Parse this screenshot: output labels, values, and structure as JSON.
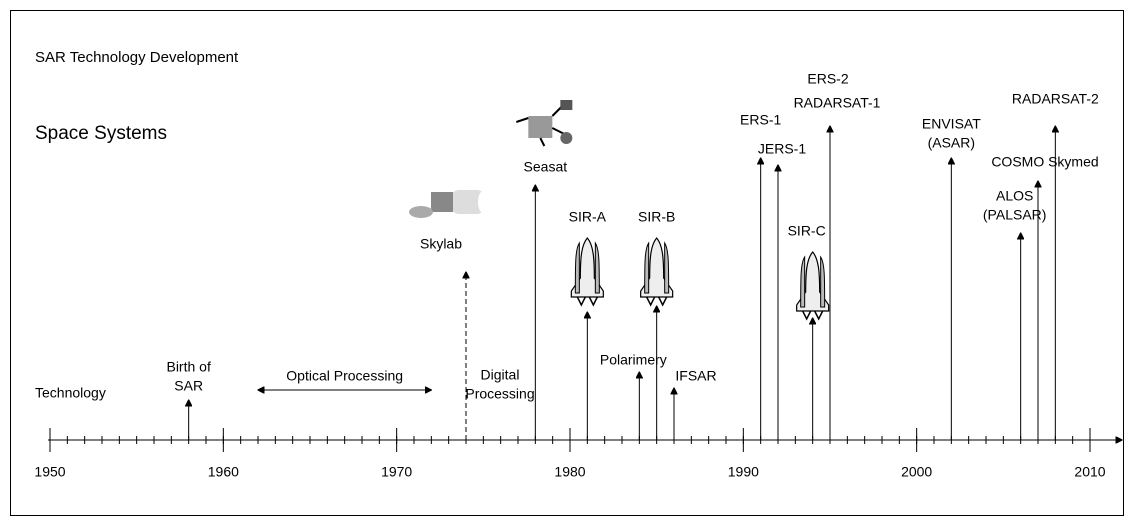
{
  "title": "SAR Technology Development",
  "section_space": "Space Systems",
  "section_technology": "Technology",
  "timeline": {
    "xlim": [
      1950,
      2010
    ],
    "xticks": [
      1950,
      1960,
      1970,
      1980,
      1990,
      2000,
      2010
    ]
  },
  "span": {
    "label": "Optical Processing",
    "years": [
      1962,
      1972
    ]
  },
  "note": [
    "Digital",
    "Processing"
  ],
  "events": [
    {
      "lines": [
        "Birth of",
        "SAR"
      ],
      "year": 1958
    },
    {
      "lines": [
        "Skylab"
      ],
      "year": 1974
    },
    {
      "lines": [
        "Seasat"
      ],
      "year": 1978
    },
    {
      "lines": [
        "SIR-A"
      ],
      "year": 1981
    },
    {
      "lines": [
        "Polarimery"
      ],
      "year": 1984
    },
    {
      "lines": [
        "SIR-B"
      ],
      "year": 1985
    },
    {
      "lines": [
        "IFSAR"
      ],
      "year": 1986
    },
    {
      "lines": [
        "ERS-1"
      ],
      "year": 1991
    },
    {
      "lines": [
        "JERS-1"
      ],
      "year": 1992
    },
    {
      "lines": [
        "SIR-C"
      ],
      "year": 1994
    },
    {
      "lines": [
        "ERS-2"
      ],
      "year": 1995
    },
    {
      "lines": [
        "RADARSAT-1"
      ],
      "year": 1995
    },
    {
      "lines": [
        "ENVISAT",
        "(ASAR)"
      ],
      "year": 2002
    },
    {
      "lines": [
        "ALOS",
        "(PALSAR)"
      ],
      "year": 2006
    },
    {
      "lines": [
        "COSMO Skymed"
      ],
      "year": 2007
    },
    {
      "lines": [
        "RADARSAT-2"
      ],
      "year": 2008
    }
  ]
}
